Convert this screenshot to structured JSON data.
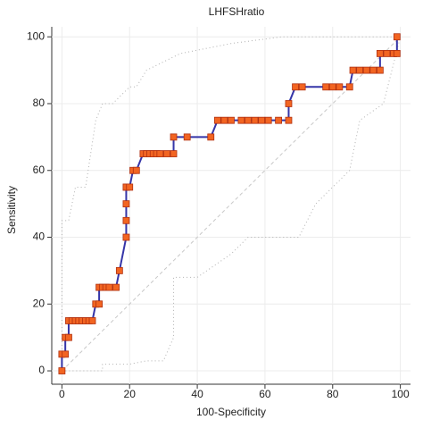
{
  "chart_data": {
    "type": "line",
    "title": "LHFSHratio",
    "x_label": "100-Specificity",
    "y_label": "Sensitivity",
    "xlim": [
      -3,
      103
    ],
    "ylim": [
      -4,
      103
    ],
    "xticks": [
      0,
      20,
      40,
      60,
      80,
      100
    ],
    "yticks": [
      0,
      20,
      40,
      60,
      80,
      100
    ],
    "grid": true,
    "series": [
      {
        "color": "#b0b0b0",
        "dash": "1,3",
        "markers": false,
        "x": [
          0,
          0,
          2,
          4,
          7,
          10,
          12,
          15,
          20,
          22,
          25,
          35,
          50,
          65,
          100
        ],
        "values": [
          0,
          45,
          45,
          55,
          55,
          75,
          80,
          80,
          85,
          85,
          90,
          95,
          98,
          100,
          100
        ]
      },
      {
        "color": "#b0b0b0",
        "dash": "1,3",
        "markers": false,
        "x": [
          0,
          12,
          12,
          20,
          25,
          30,
          33,
          33,
          40,
          50,
          55,
          70,
          75,
          80,
          85,
          88,
          95,
          100
        ],
        "values": [
          0,
          0,
          2,
          2,
          3,
          3,
          10,
          28,
          28,
          35,
          40,
          40,
          50,
          55,
          60,
          75,
          80,
          100
        ]
      },
      {
        "color": "#c8c8c8",
        "dash": "4,3",
        "markers": false,
        "x": [
          0,
          100
        ],
        "values": [
          0,
          100
        ]
      },
      {
        "color": "#3535a8",
        "markers": true,
        "marker_color": "#f26522",
        "x": [
          0,
          0,
          1,
          1,
          2,
          2,
          3,
          4,
          5,
          6,
          7,
          8,
          9,
          10,
          11,
          11,
          12,
          13,
          14,
          16,
          17,
          19,
          19,
          19,
          19,
          19,
          20,
          21,
          22,
          24,
          25,
          26,
          27,
          28,
          29,
          31,
          33,
          33,
          37,
          44,
          46,
          48,
          50,
          53,
          55,
          57,
          59,
          61,
          64,
          67,
          67,
          69,
          71,
          78,
          80,
          82,
          85,
          86,
          88,
          90,
          92,
          94,
          94,
          96,
          98,
          99,
          99
        ],
        "values": [
          0,
          5,
          5,
          10,
          10,
          15,
          15,
          15,
          15,
          15,
          15,
          15,
          15,
          20,
          20,
          25,
          25,
          25,
          25,
          25,
          30,
          40,
          45,
          50,
          55,
          55,
          55,
          60,
          60,
          65,
          65,
          65,
          65,
          65,
          65,
          65,
          65,
          70,
          70,
          70,
          75,
          75,
          75,
          75,
          75,
          75,
          75,
          75,
          75,
          75,
          80,
          85,
          85,
          85,
          85,
          85,
          85,
          90,
          90,
          90,
          90,
          90,
          95,
          95,
          95,
          95,
          100
        ]
      }
    ]
  }
}
